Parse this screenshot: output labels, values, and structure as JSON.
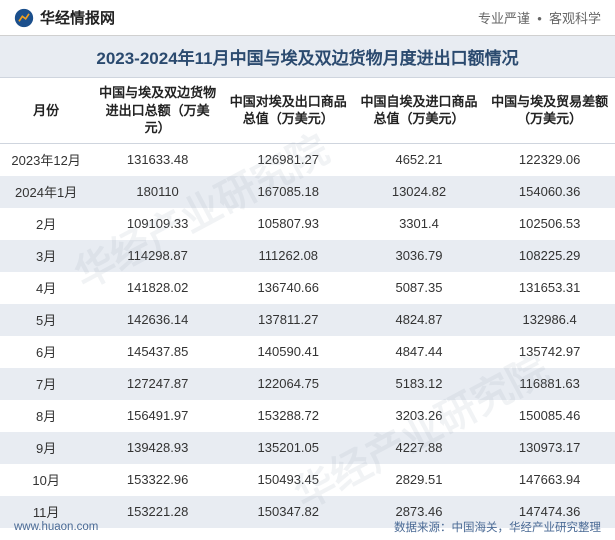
{
  "header": {
    "brand": "华经情报网",
    "tagline_left": "专业严谨",
    "tagline_right": "客观科学",
    "logo_color_primary": "#1b4f8c",
    "logo_color_accent": "#f0a020"
  },
  "title": "2023-2024年11月中国与埃及双边货物月度进出口额情况",
  "columns": [
    "月份",
    "中国与埃及双边货物进出口总额（万美元）",
    "中国对埃及出口商品总值（万美元）",
    "中国自埃及进口商品总值（万美元）",
    "中国与埃及贸易差额（万美元）"
  ],
  "rows": [
    {
      "month": "2023年12月",
      "total": "131633.48",
      "export": "126981.27",
      "import": "4652.21",
      "balance": "122329.06"
    },
    {
      "month": "2024年1月",
      "total": "180110",
      "export": "167085.18",
      "import": "13024.82",
      "balance": "154060.36"
    },
    {
      "month": "2月",
      "total": "109109.33",
      "export": "105807.93",
      "import": "3301.4",
      "balance": "102506.53"
    },
    {
      "month": "3月",
      "total": "114298.87",
      "export": "111262.08",
      "import": "3036.79",
      "balance": "108225.29"
    },
    {
      "month": "4月",
      "total": "141828.02",
      "export": "136740.66",
      "import": "5087.35",
      "balance": "131653.31"
    },
    {
      "month": "5月",
      "total": "142636.14",
      "export": "137811.27",
      "import": "4824.87",
      "balance": "132986.4"
    },
    {
      "month": "6月",
      "total": "145437.85",
      "export": "140590.41",
      "import": "4847.44",
      "balance": "135742.97"
    },
    {
      "month": "7月",
      "total": "127247.87",
      "export": "122064.75",
      "import": "5183.12",
      "balance": "116881.63"
    },
    {
      "month": "8月",
      "total": "156491.97",
      "export": "153288.72",
      "import": "3203.26",
      "balance": "150085.46"
    },
    {
      "month": "9月",
      "total": "139428.93",
      "export": "135201.05",
      "import": "4227.88",
      "balance": "130973.17"
    },
    {
      "month": "10月",
      "total": "153322.96",
      "export": "150493.45",
      "import": "2829.51",
      "balance": "147663.94"
    },
    {
      "month": "11月",
      "total": "153221.28",
      "export": "150347.82",
      "import": "2873.46",
      "balance": "147474.36"
    }
  ],
  "footer": {
    "site_url": "www.huaon.com",
    "source_label": "数据来源：",
    "source_text": "中国海关，华经产业研究整理"
  },
  "watermark": "华经产业研究院",
  "style": {
    "title_bg": "#e8ecf2",
    "title_color": "#2b4a6f",
    "row_even_bg": "#e8ecf2",
    "row_odd_bg": "#ffffff",
    "border_color": "#cfd5de",
    "footer_color": "#4a6a95",
    "font_family": "Microsoft YaHei",
    "title_fontsize": 17,
    "header_fontsize": 13,
    "cell_fontsize": 13,
    "footer_fontsize": 11.5
  }
}
